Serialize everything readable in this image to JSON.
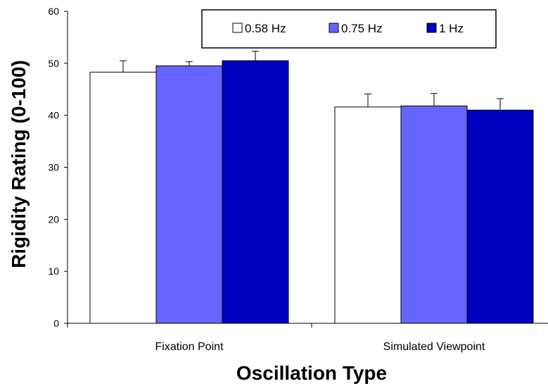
{
  "chart_data": {
    "type": "bar",
    "title": "",
    "xlabel": "Oscillation Type",
    "ylabel": "Rigidity Rating  (0-100)",
    "ylim": [
      0,
      60
    ],
    "yticks": [
      0,
      10,
      20,
      30,
      40,
      50,
      60
    ],
    "grid": false,
    "legend_position": "top-right",
    "categories": [
      "Fixation Point",
      "Simulated Viewpoint"
    ],
    "series": [
      {
        "name": "0.58 Hz",
        "color": "#ffffff",
        "values": [
          48.3,
          41.6
        ],
        "errors": [
          2.2,
          2.5
        ]
      },
      {
        "name": "0.75 Hz",
        "color": "#6666ff",
        "values": [
          49.5,
          41.8
        ],
        "errors": [
          0.8,
          2.4
        ]
      },
      {
        "name": "1 Hz",
        "color": "#0000c0",
        "values": [
          50.5,
          41.0
        ],
        "errors": [
          1.8,
          2.2
        ]
      }
    ]
  }
}
